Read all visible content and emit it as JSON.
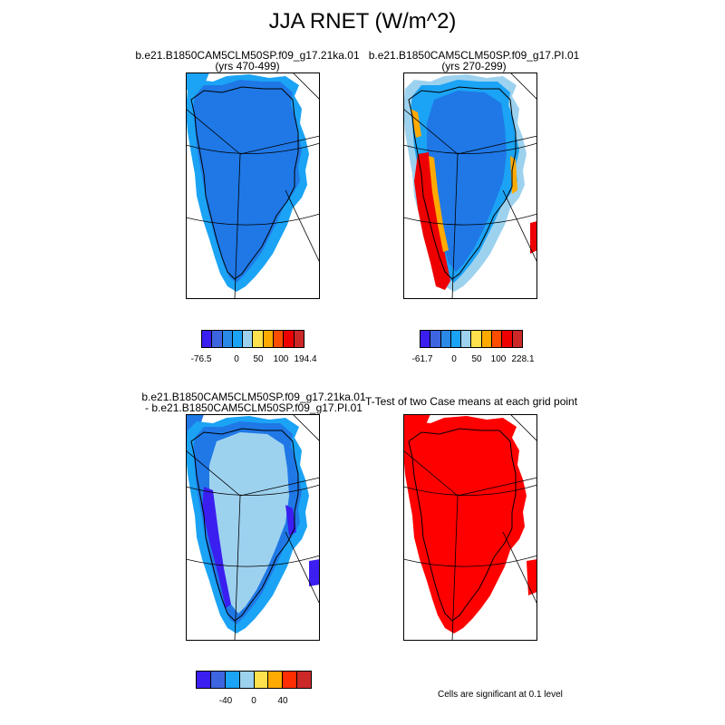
{
  "title": "JJA RNET (W/m^2)",
  "panels": [
    {
      "id": "p1",
      "title_line1": "b.e21.B1850CAM5CLM50SP.f09_g17.21ka.01",
      "title_line2": "(yrs 470-499)"
    },
    {
      "id": "p2",
      "title_line1": "b.e21.B1850CAM5CLM50SP.f09_g17.PI.01",
      "title_line2": "(yrs 270-299)"
    },
    {
      "id": "p3",
      "title_line1": "b.e21.B1850CAM5CLM50SP.f09_g17.21ka.01",
      "title_line2": "- b.e21.B1850CAM5CLM50SP.f09_g17.PI.01"
    },
    {
      "id": "p4",
      "title_line1": "T-Test of two Case means at each grid point",
      "title_line2": ""
    }
  ],
  "colorbars": [
    {
      "id": "cb1",
      "colors": [
        "#3a1ff0",
        "#3e65e0",
        "#2a88e6",
        "#1ba3f5",
        "#9dd2ef",
        "#ffe14d",
        "#ffaa00",
        "#ff4d00",
        "#ee0000",
        "#cc2828"
      ],
      "labels": [
        "-76.5",
        "0",
        "50",
        "100",
        "194.4"
      ]
    },
    {
      "id": "cb2",
      "colors": [
        "#3a1ff0",
        "#3e65e0",
        "#2a88e6",
        "#1ba3f5",
        "#9dd2ef",
        "#ffe14d",
        "#ffaa00",
        "#ff4d00",
        "#ee0000",
        "#cc2828"
      ],
      "labels": [
        "-61.7",
        "0",
        "50",
        "100",
        "228.1"
      ]
    },
    {
      "id": "cb3",
      "colors": [
        "#3a1ff0",
        "#3e65e0",
        "#1ba3f5",
        "#9dd2ef",
        "#ffe14d",
        "#ffaa00",
        "#ff2d00",
        "#cc2828"
      ],
      "labels": [
        "-40",
        "0",
        "40"
      ]
    }
  ],
  "significance_note": "Cells are significant at 0.1 level",
  "fill_colors": {
    "deep_blue": "#1f78e6",
    "mid_blue": "#1ba3f5",
    "light_blue": "#9dd2ef",
    "violet": "#3a1ff0",
    "yellow": "#ffe14d",
    "orange": "#ffaa00",
    "red": "#ee0000",
    "sig_red": "#ff0000"
  }
}
